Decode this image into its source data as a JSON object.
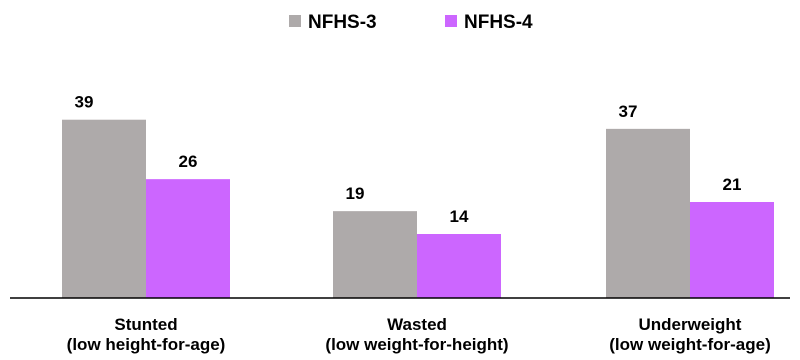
{
  "chart_data": {
    "type": "bar",
    "title": "",
    "xlabel": "",
    "ylabel": "",
    "ylim": [
      0,
      42
    ],
    "grid": false,
    "legend_position": "top-center",
    "categories": [
      [
        "Stunted",
        "(low height-for-age)"
      ],
      [
        "Wasted",
        "(low weight-for-height)"
      ],
      [
        "Underweight",
        "(low weight-for-age)"
      ]
    ],
    "series": [
      {
        "name": "NFHS-3",
        "color": "#aeaaaa",
        "values": [
          39,
          19,
          37
        ]
      },
      {
        "name": "NFHS-4",
        "color": "#cc66ff",
        "values": [
          26,
          14,
          21
        ]
      }
    ],
    "axis_color": "#000000"
  }
}
